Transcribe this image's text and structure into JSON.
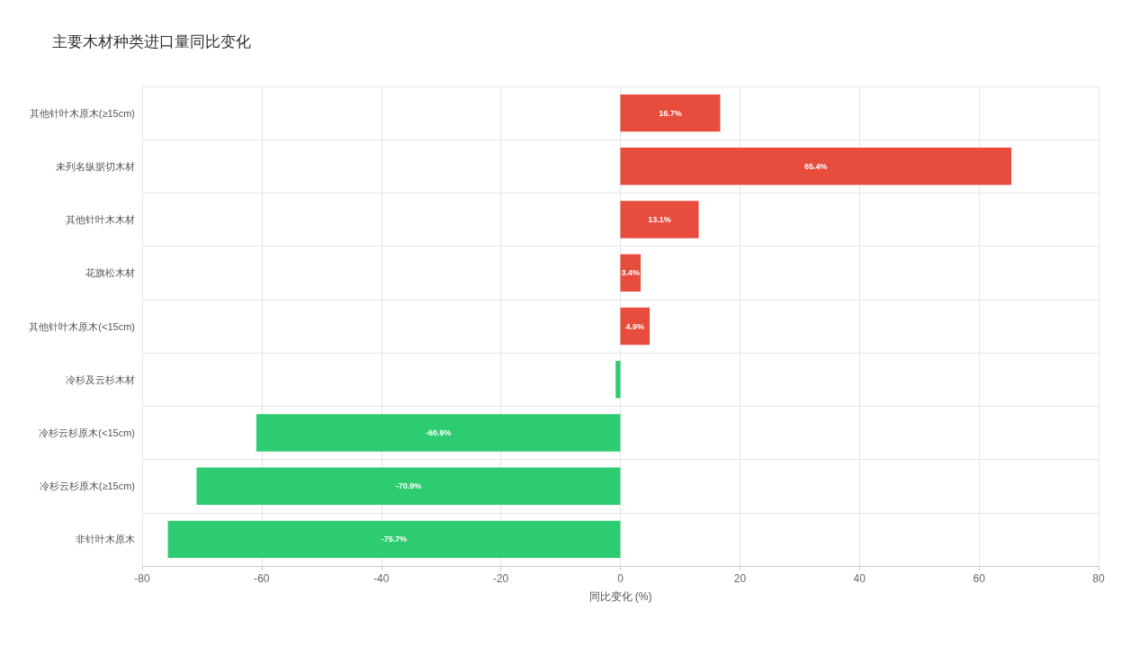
{
  "chart_data": {
    "type": "bar",
    "orientation": "horizontal",
    "title": "主要木材种类进口量同比变化",
    "xlabel": "同比变化 (%)",
    "categories": [
      "其他针叶木原木(≥15cm)",
      "未列名纵据切木材",
      "其他针叶木木材",
      "花旗松木材",
      "其他针叶木原木(<15cm)",
      "冷杉及云杉木材",
      "冷杉云杉原木(<15cm)",
      "冷杉云杉原木(≥15cm)",
      "非针叶木原木"
    ],
    "values": [
      16.7,
      65.4,
      13.1,
      3.4,
      4.9,
      -0.8,
      -60.9,
      -70.9,
      -75.7
    ],
    "value_labels": [
      "16.7%",
      "65.4%",
      "13.1%",
      "3.4%",
      "4.9%",
      null,
      "-60.9%",
      "-70.9%",
      "-75.7%"
    ],
    "colors": [
      "#e74c3c",
      "#e74c3c",
      "#e74c3c",
      "#e74c3c",
      "#e74c3c",
      "#2ecc71",
      "#2ecc71",
      "#2ecc71",
      "#2ecc71"
    ],
    "xlim": [
      -80,
      80
    ],
    "xticks": [
      -80,
      -60,
      -40,
      -20,
      0,
      20,
      40,
      60,
      80
    ],
    "grid": true
  }
}
